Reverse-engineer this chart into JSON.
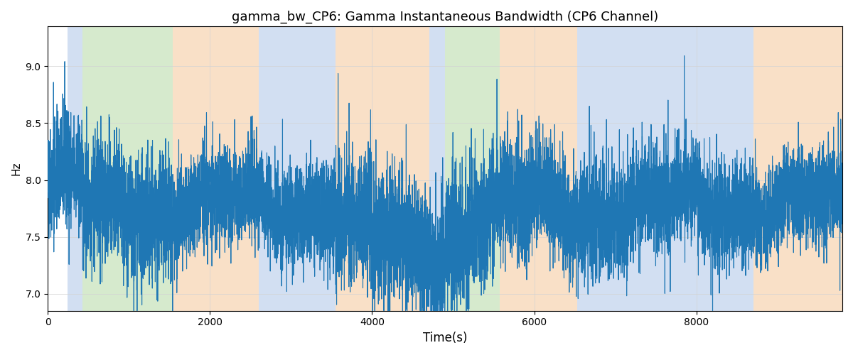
{
  "title": "gamma_bw_CP6: Gamma Instantaneous Bandwidth (CP6 Channel)",
  "xlabel": "Time(s)",
  "ylabel": "Hz",
  "xlim": [
    0,
    9800
  ],
  "ylim": [
    6.85,
    9.35
  ],
  "yticks": [
    7.0,
    7.5,
    8.0,
    8.5,
    9.0
  ],
  "line_color": "#1f77b4",
  "line_width": 0.8,
  "seed": 42,
  "n_points": 9800,
  "background_bands": [
    {
      "xmin": 240,
      "xmax": 430,
      "color": "#aec6e8",
      "alpha": 0.55
    },
    {
      "xmin": 430,
      "xmax": 1540,
      "color": "#b5d9a5",
      "alpha": 0.55
    },
    {
      "xmin": 1540,
      "xmax": 2600,
      "color": "#f5c89a",
      "alpha": 0.55
    },
    {
      "xmin": 2600,
      "xmax": 3550,
      "color": "#aec6e8",
      "alpha": 0.55
    },
    {
      "xmin": 3550,
      "xmax": 4710,
      "color": "#f5c89a",
      "alpha": 0.55
    },
    {
      "xmin": 4710,
      "xmax": 4900,
      "color": "#aec6e8",
      "alpha": 0.55
    },
    {
      "xmin": 4900,
      "xmax": 5570,
      "color": "#b5d9a5",
      "alpha": 0.55
    },
    {
      "xmin": 5570,
      "xmax": 6530,
      "color": "#f5c89a",
      "alpha": 0.55
    },
    {
      "xmin": 6530,
      "xmax": 7730,
      "color": "#aec6e8",
      "alpha": 0.55
    },
    {
      "xmin": 7730,
      "xmax": 8700,
      "color": "#aec6e8",
      "alpha": 0.55
    },
    {
      "xmin": 8700,
      "xmax": 9800,
      "color": "#f5c89a",
      "alpha": 0.55
    }
  ],
  "figsize": [
    12.0,
    5.0
  ],
  "dpi": 100,
  "title_fontsize": 13
}
